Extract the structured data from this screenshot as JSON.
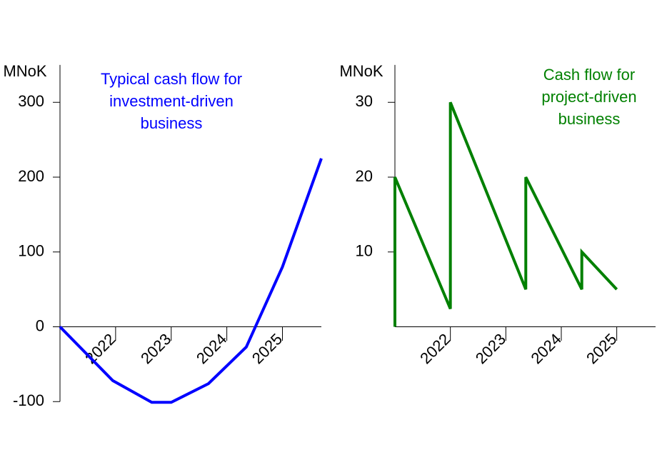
{
  "chart_data": [
    {
      "type": "line",
      "title": [
        "Typical cash flow for",
        "investment-driven",
        "business"
      ],
      "title_color": "#0000ff",
      "y_label": "MNoK",
      "x": [
        2022,
        2022.95,
        2023.65,
        2024.0,
        2024.67,
        2025.35,
        2026.0,
        2026.7
      ],
      "series": [
        {
          "color": "#0000ff",
          "values": [
            0,
            -72,
            -101,
            -101,
            -76,
            -27,
            80,
            225
          ]
        }
      ],
      "xlim": [
        2022,
        2026.7
      ],
      "xticks": [
        {
          "value": 2022.5,
          "label": "2022"
        },
        {
          "value": 2023.5,
          "label": "2023"
        },
        {
          "value": 2024.5,
          "label": "2024"
        },
        {
          "value": 2025.5,
          "label": "2025"
        }
      ],
      "xticks_minor": [
        2023,
        2024,
        2025,
        2026
      ],
      "ylim": [
        -100,
        350
      ],
      "yticks": [
        -100,
        0,
        100,
        200,
        300
      ]
    },
    {
      "type": "line",
      "title": [
        "Cash flow for",
        "project-driven",
        "business"
      ],
      "title_color": "#008000",
      "y_label": "MNoK",
      "x": [
        2022,
        2022,
        2023,
        2023,
        2024.36,
        2024.36,
        2025.37,
        2025.37,
        2026
      ],
      "series": [
        {
          "color": "#008000",
          "values": [
            0,
            20,
            2.4,
            30,
            5,
            20,
            5,
            10,
            5
          ]
        }
      ],
      "xlim": [
        2022,
        2026.7
      ],
      "xticks": [
        {
          "value": 2022.5,
          "label": "2022"
        },
        {
          "value": 2023.5,
          "label": "2023"
        },
        {
          "value": 2024.5,
          "label": "2024"
        },
        {
          "value": 2025.5,
          "label": "2025"
        }
      ],
      "xticks_minor": [
        2023,
        2024,
        2025,
        2026
      ],
      "ylim": [
        0,
        35
      ],
      "yticks": [
        10,
        20,
        30
      ]
    }
  ]
}
